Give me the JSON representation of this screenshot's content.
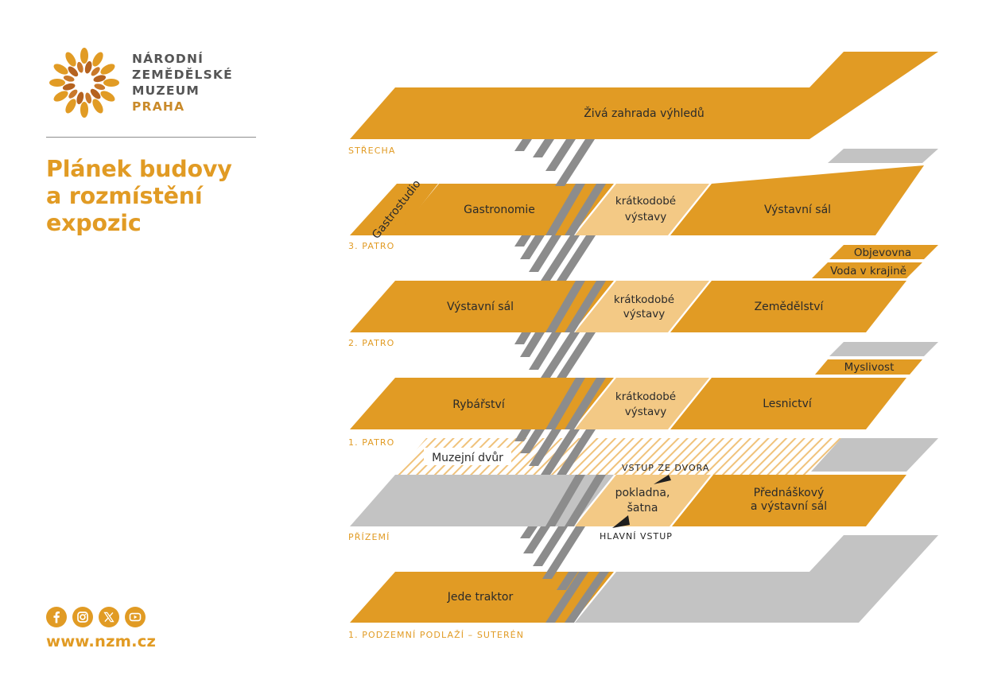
{
  "brand": {
    "line1": "NÁRODNÍ",
    "line2": "ZEMĚDĚLSKÉ",
    "line3": "MUZEUM",
    "city": "PRAHA",
    "logo_icon": "wheat-wreath-icon"
  },
  "page": {
    "title_line1": "Plánek budovy",
    "title_line2": "a rozmístění",
    "title_line3": "expozic"
  },
  "social": [
    {
      "name": "facebook",
      "icon": "facebook-icon"
    },
    {
      "name": "instagram",
      "icon": "instagram-icon"
    },
    {
      "name": "x",
      "icon": "x-icon"
    },
    {
      "name": "youtube",
      "icon": "youtube-icon"
    }
  ],
  "website": "www.nzm.cz",
  "colors": {
    "accent": "#e19b24",
    "accent_light": "#f3c985",
    "inactive_gray": "#c3c3c3",
    "stair_gray": "#8c8c8c",
    "text_dark": "#2a2a2a"
  },
  "floors": {
    "roof": {
      "label": "STŘECHA",
      "areas": {
        "garden": "Živá zahrada výhledů"
      }
    },
    "third": {
      "label": "3. PATRO",
      "areas": {
        "gastrostudio": "Gastrostudio",
        "gastronomy": "Gastronomie",
        "short_line1": "krátkodobé",
        "short_line2": "výstavy",
        "hall": "Výstavní sál"
      }
    },
    "second": {
      "label": "2. PATRO",
      "areas": {
        "discovery": "Objevovna",
        "water": "Voda v krajině",
        "hall": "Výstavní sál",
        "short_line1": "krátkodobé",
        "short_line2": "výstavy",
        "agriculture": "Zemědělství"
      }
    },
    "first": {
      "label": "1. PATRO",
      "areas": {
        "hunting": "Myslivost",
        "fishing": "Rybářství",
        "short_line1": "krátkodobé",
        "short_line2": "výstavy",
        "forestry": "Lesnictví"
      }
    },
    "ground": {
      "label": "PŘÍZEMÍ",
      "areas": {
        "courtyard": "Muzejní dvůr",
        "yard_entrance": "VSTUP ZE DVORA",
        "cashdesk_line1": "pokladna,",
        "cashdesk_line2": "šatna",
        "lecture_line1": "Přednáškový",
        "lecture_line2": "a výstavní sál",
        "main_entrance": "HLAVNÍ VSTUP"
      }
    },
    "basement": {
      "label": "1. PODZEMNÍ PODLAŽÍ – SUTERÉN",
      "areas": {
        "tractor": "Jede traktor"
      }
    }
  }
}
